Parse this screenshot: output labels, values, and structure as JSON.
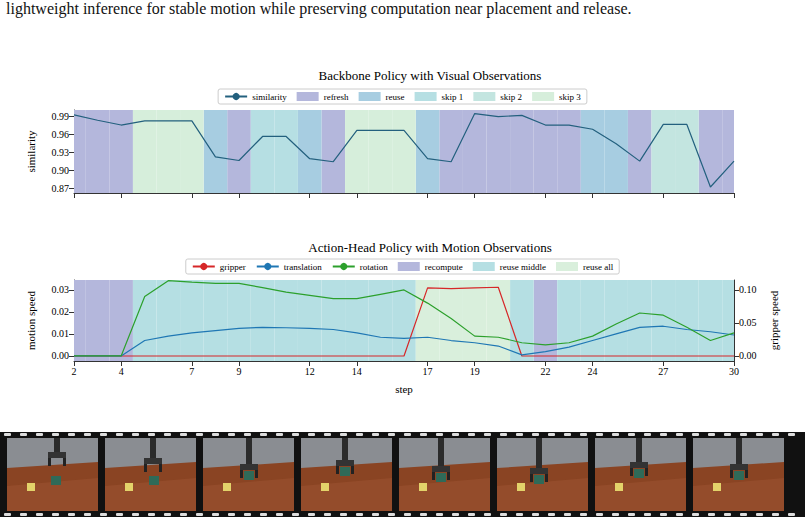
{
  "caption_text": "lightweight inference for stable motion while preserving computation near placement and release.",
  "chart_data": [
    {
      "type": "line",
      "title": "Backbone Policy with Visual Observations",
      "y_label": "similarity",
      "x": [
        2,
        3,
        4,
        5,
        6,
        7,
        8,
        9,
        10,
        11,
        12,
        13,
        14,
        15,
        16,
        17,
        18,
        19,
        20,
        21,
        22,
        23,
        24,
        25,
        26,
        27,
        28,
        29,
        30
      ],
      "xlim": [
        2,
        30
      ],
      "xticks": [
        2,
        4,
        7,
        9,
        12,
        14,
        17,
        19,
        22,
        24,
        27,
        30
      ],
      "ylim": [
        0.862,
        1.0
      ],
      "yticks": [
        0.87,
        {
          "value": 0.9,
          "label": "0.90"
        },
        0.93,
        0.96,
        0.99
      ],
      "tick_labels": "y",
      "grid": false,
      "legend": "top",
      "series": [
        {
          "name": "similarity",
          "type": "line",
          "color": "#23607e",
          "values": [
            0.992,
            0.983,
            0.975,
            0.982,
            0.982,
            0.982,
            0.922,
            0.916,
            0.956,
            0.956,
            0.919,
            0.914,
            0.966,
            0.966,
            0.966,
            0.919,
            0.914,
            0.994,
            0.989,
            0.991,
            0.975,
            0.975,
            0.968,
            0.944,
            0.915,
            0.976,
            0.976,
            0.872,
            0.915
          ]
        },
        {
          "name": "refresh",
          "type": "span",
          "color": "#b4b7dc",
          "steps": [
            2,
            3,
            4,
            9,
            13,
            18,
            19,
            20,
            21,
            22,
            23,
            26,
            29,
            30
          ]
        },
        {
          "name": "reuse",
          "type": "span",
          "color": "#a7cde1",
          "steps": [
            8,
            12,
            17,
            24,
            25
          ]
        },
        {
          "name": "skip 1",
          "type": "span",
          "color": "#b6dfe3",
          "steps": [
            10,
            11
          ]
        },
        {
          "name": "skip 2",
          "type": "span",
          "color": "#c3e5e0",
          "steps": [
            27,
            28
          ]
        },
        {
          "name": "skip 3",
          "type": "span",
          "color": "#d6eedb",
          "steps": [
            5,
            6,
            7,
            14,
            15,
            16
          ]
        }
      ]
    },
    {
      "type": "line",
      "title": "Action-Head Policy with Motion Observations",
      "x_label": "step",
      "y_label": "motion speed",
      "y2_label": "gripper speed",
      "x": [
        2,
        3,
        4,
        5,
        6,
        7,
        8,
        9,
        10,
        11,
        12,
        13,
        14,
        15,
        16,
        17,
        18,
        19,
        20,
        21,
        22,
        23,
        24,
        25,
        26,
        27,
        28,
        29,
        30
      ],
      "xlim": [
        2,
        30
      ],
      "xticks": [
        2,
        4,
        7,
        9,
        12,
        14,
        17,
        19,
        22,
        24,
        27,
        30
      ],
      "ylim": [
        -0.0023,
        0.0345
      ],
      "yticks": [
        {
          "value": 0,
          "label": "0.00"
        },
        0.01,
        0.02,
        0.03
      ],
      "y2lim": [
        -0.0076,
        0.115
      ],
      "y2ticks": [
        {
          "value": 0,
          "label": "0.00"
        },
        0.05,
        {
          "value": 0.1,
          "label": "0.10"
        }
      ],
      "grid": false,
      "legend": "top",
      "series": [
        {
          "name": "gripper",
          "type": "line",
          "axis": "y2",
          "color": "#d62728",
          "values": [
            0,
            0,
            0,
            0,
            0,
            0,
            0,
            0,
            0,
            0,
            0,
            0,
            0,
            0,
            0,
            0.103,
            0.102,
            0.103,
            0.104,
            0,
            0,
            0,
            0,
            0,
            0,
            0,
            0,
            0,
            0
          ]
        },
        {
          "name": "translation",
          "type": "line",
          "color": "#1f77b4",
          "values": [
            0,
            0,
            0,
            0.007,
            0.009,
            0.0105,
            0.0115,
            0.0125,
            0.013,
            0.0128,
            0.0125,
            0.012,
            0.0105,
            0.0085,
            0.008,
            0.0085,
            0.007,
            0.006,
            0.0045,
            0.0005,
            0.002,
            0.004,
            0.007,
            0.01,
            0.013,
            0.0135,
            0.012,
            0.011,
            0.0095
          ]
        },
        {
          "name": "rotation",
          "type": "line",
          "color": "#2ca02c",
          "values": [
            0,
            0,
            0,
            0.027,
            0.0342,
            0.0335,
            0.033,
            0.033,
            0.031,
            0.029,
            0.0275,
            0.026,
            0.026,
            0.028,
            0.03,
            0.024,
            0.017,
            0.009,
            0.0085,
            0.006,
            0.005,
            0.006,
            0.009,
            0.0145,
            0.0195,
            0.0185,
            0.013,
            0.007,
            0.0105
          ]
        },
        {
          "name": "recompute",
          "type": "span",
          "color": "#b4b7dc",
          "steps": [
            2,
            3,
            4,
            22
          ]
        },
        {
          "name": "reuse middle",
          "type": "span",
          "color": "#b5dfe3",
          "steps": [
            5,
            6,
            7,
            8,
            9,
            10,
            11,
            12,
            13,
            14,
            15,
            16,
            21,
            23,
            24,
            25,
            26,
            27,
            28,
            29,
            30
          ]
        },
        {
          "name": "reuse all",
          "type": "span",
          "color": "#d9efdc",
          "steps": [
            17,
            18,
            19,
            20
          ]
        }
      ]
    }
  ]
}
